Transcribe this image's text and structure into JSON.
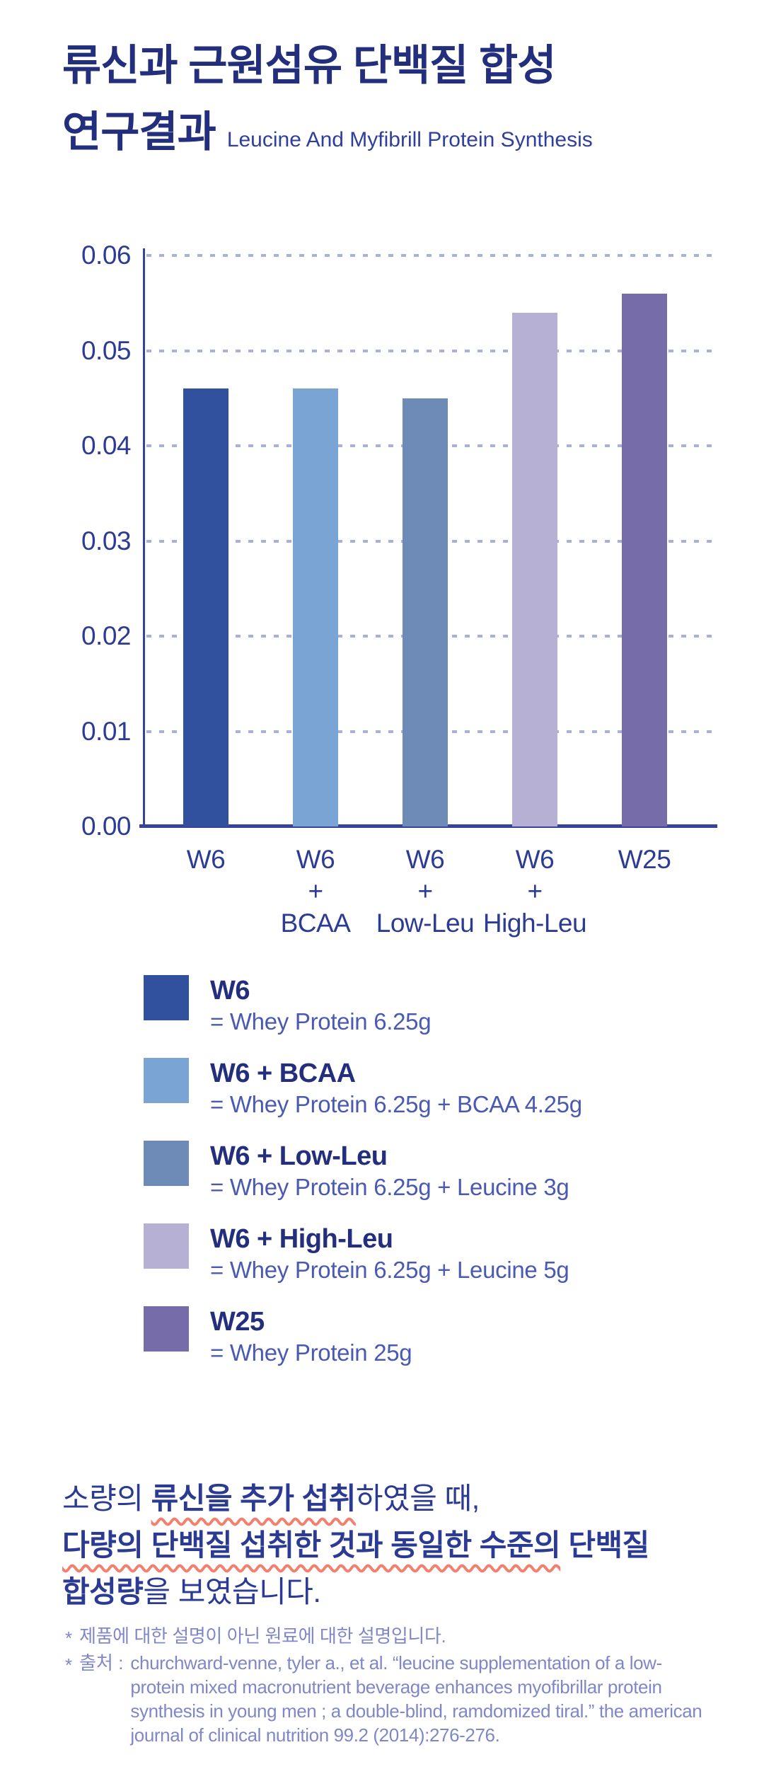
{
  "header": {
    "title_line1": "류신과 근원섬유 단백질 합성",
    "title_line2": "연구결과",
    "subtitle": "Leucine And Myfibrill Protein Synthesis"
  },
  "chart_data": {
    "type": "bar",
    "categories": [
      "W6",
      "W6 + BCAA",
      "W6 + Low-Leu",
      "W6 + High-Leu",
      "W25"
    ],
    "category_lines": [
      [
        "W6"
      ],
      [
        "W6",
        "+",
        "BCAA"
      ],
      [
        "W6",
        "+",
        "Low-Leu"
      ],
      [
        "W6",
        "+",
        "High-Leu"
      ],
      [
        "W25"
      ]
    ],
    "values": [
      0.046,
      0.046,
      0.045,
      0.054,
      0.056
    ],
    "bar_colors": [
      "#31519e",
      "#7aa4d3",
      "#6e8ab6",
      "#b7b0d5",
      "#756ca9"
    ],
    "title": "",
    "xlabel": "",
    "ylabel": "",
    "ylim": [
      0,
      0.06
    ],
    "ytick_labels": [
      "0.00",
      "0.01",
      "0.02",
      "0.03",
      "0.04",
      "0.05",
      "0.06"
    ],
    "grid": "horizontal-dashed",
    "legend_position": "below"
  },
  "legend": {
    "items": [
      {
        "label": "W6",
        "desc": "= Whey Protein 6.25g",
        "color": "#31519e"
      },
      {
        "label": "W6 + BCAA",
        "desc": "= Whey Protein 6.25g + BCAA 4.25g",
        "color": "#7aa4d3"
      },
      {
        "label": "W6 + Low-Leu",
        "desc": "= Whey Protein 6.25g + Leucine 3g",
        "color": "#6e8ab6"
      },
      {
        "label": "W6 + High-Leu",
        "desc": "= Whey Protein 6.25g + Leucine 5g",
        "color": "#b7b0d5"
      },
      {
        "label": "W25",
        "desc": "= Whey Protein 25g",
        "color": "#756ca9"
      }
    ]
  },
  "headline": {
    "lines": [
      {
        "segments": [
          {
            "text": "소량의 ",
            "bold": false,
            "wavy": false
          },
          {
            "text": "류신을 추가 섭취",
            "bold": true,
            "wavy": true
          },
          {
            "text": "하였을 때,",
            "bold": false,
            "wavy": false
          }
        ]
      },
      {
        "segments": [
          {
            "text": "다량의 단백질 섭취한 것과 동일한 수준의",
            "bold": true,
            "wavy": true
          },
          {
            "text": " 단백질",
            "bold": true,
            "wavy": false
          }
        ]
      },
      {
        "segments": [
          {
            "text": "합성량",
            "bold": true,
            "wavy": false
          },
          {
            "text": "을 보였습니다.",
            "bold": false,
            "wavy": false
          }
        ]
      }
    ]
  },
  "footnotes": {
    "items": [
      {
        "marker": "*",
        "label": "",
        "text": "제품에 대한 설명이 아닌 원료에 대한 설명입니다."
      },
      {
        "marker": "*",
        "label": "출처 :",
        "text": "churchward-venne, tyler a., et al. “leucine supplementation of a low-protein mixed macronutrient beverage enhances myofibrillar protein synthesis in young men ; a double-blind, ramdomized tiral.” the american journal of clinical nutrition 99.2 (2014):276-276."
      }
    ]
  },
  "colors": {
    "title": "#232e7d",
    "subtitle": "#303f9b",
    "tick": "#2c3b94",
    "axis": "#35439a",
    "grid": "#a9b0da",
    "accent_text": "#2b3a92",
    "wavy_underline": "#f2806f",
    "footnote": "#8087c8",
    "legend_desc": "#4a5ab2"
  }
}
